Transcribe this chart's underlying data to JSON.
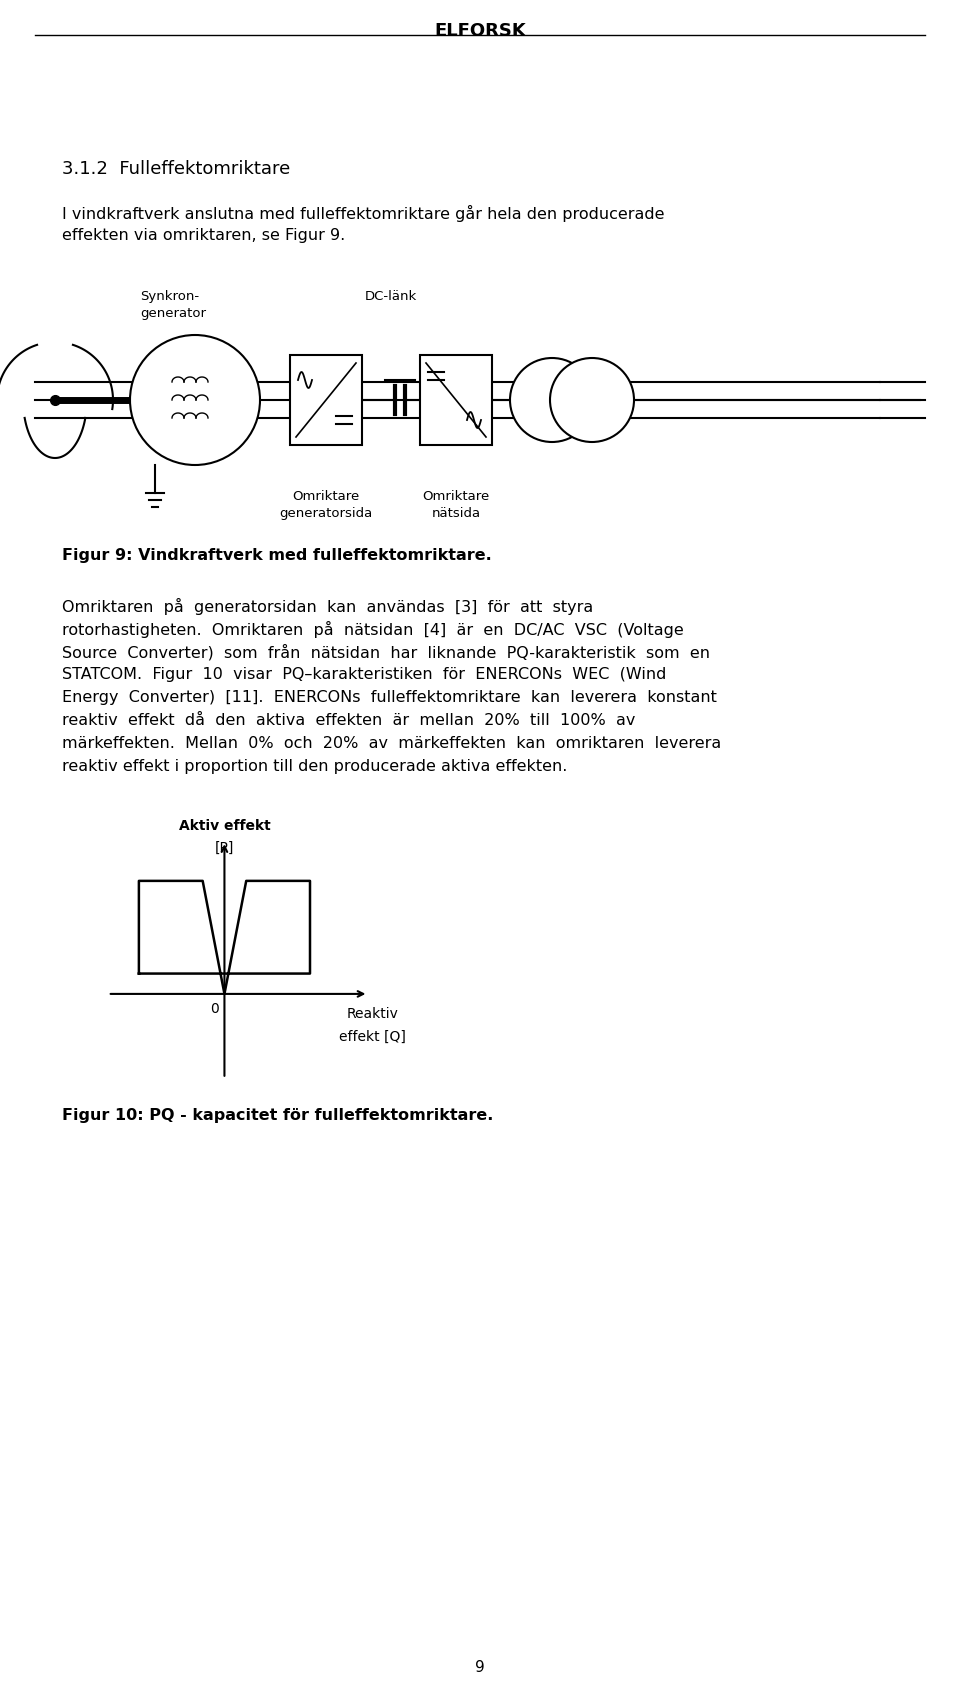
{
  "header": "ELFORSK",
  "section_title": "3.1.2  Fulleffektomriktare",
  "para1_line1": "I vindkraftverk anslutna med fulleffektomriktare går hela den producerade",
  "para1_line2": "effekten via omriktaren, se Figur 9.",
  "fig9_caption": "Figur 9: Vindkraftverk med fulleffektomriktare.",
  "fig9_label_synkron": "Synkron-\ngenerator",
  "fig9_label_dc": "DC-länk",
  "fig9_label_omr_gen": "Omriktare\ngeneratorsida",
  "fig9_label_omr_nat": "Omriktare\nnätsida",
  "para2_lines": [
    "Omriktaren  på  generatorsidan  kan  användas  [3]  för  att  styra",
    "rotorhastigheten.  Omriktaren  på  nätsidan  [4]  är  en  DC/AC  VSC  (Voltage",
    "Source  Converter)  som  från  nätsidan  har  liknande  PQ-karakteristik  som  en",
    "STATCOM.  Figur  10  visar  PQ–karakteristiken  för  ENERCONs  WEC  (Wind",
    "Energy  Converter)  [11].  ENERCONs  fulleffektomriktare  kan  leverera  konstant",
    "reaktiv  effekt  då  den  aktiva  effekten  är  mellan  20%  till  100%  av",
    "märkeffekten.  Mellan  0%  och  20%  av  märkeffekten  kan  omriktaren  leverera",
    "reaktiv effekt i proportion till den producerade aktiva effekten."
  ],
  "fig10_caption": "Figur 10: PQ - kapacitet för fulleffektomriktare.",
  "page_number": "9",
  "bg_color": "#ffffff",
  "text_color": "#000000"
}
